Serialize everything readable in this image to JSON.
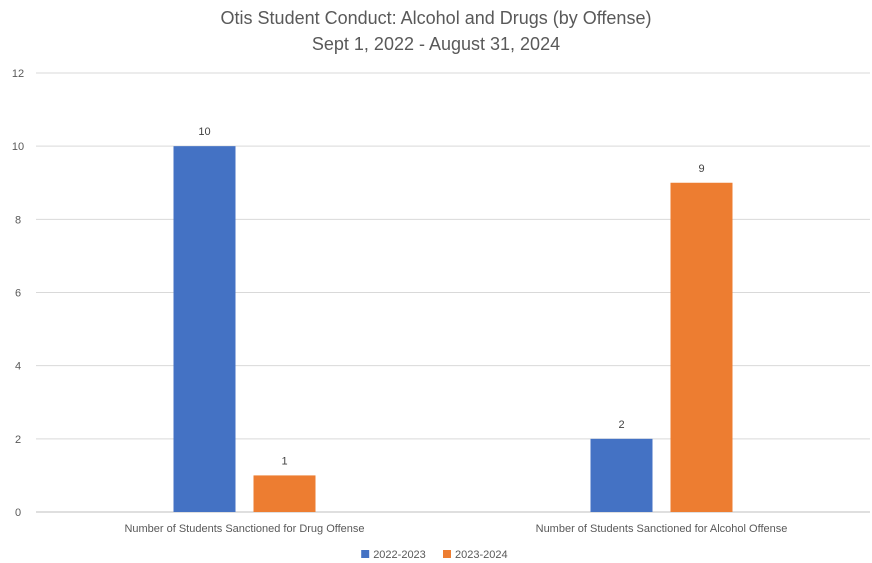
{
  "chart_data": {
    "type": "bar",
    "title": "Otis Student Conduct: Alcohol and Drugs (by Offense)",
    "subtitle": "Sept 1, 2022 - August 31, 2024",
    "categories": [
      "Number of Students Sanctioned for Drug Offense",
      "Number of Students Sanctioned for Alcohol Offense"
    ],
    "series": [
      {
        "name": "2022-2023",
        "color": "#4472C4",
        "values": [
          10,
          2
        ]
      },
      {
        "name": "2023-2024",
        "color": "#ED7D31",
        "values": [
          1,
          9
        ]
      }
    ],
    "ylim": [
      0,
      12
    ],
    "yticks": [
      0,
      2,
      4,
      6,
      8,
      10,
      12
    ],
    "grid": true,
    "data_labels": true,
    "legend_position": "bottom"
  }
}
